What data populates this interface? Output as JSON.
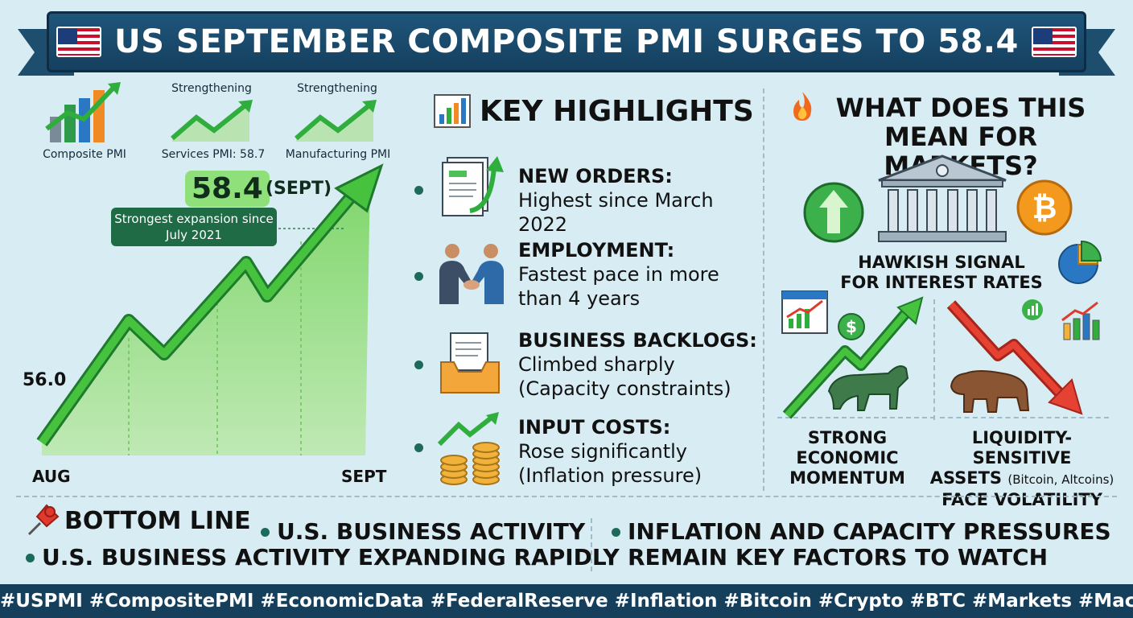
{
  "header": {
    "title": "US SEPTEMBER COMPOSITE PMI SURGES TO 58.4"
  },
  "left_panel": {
    "icons": [
      {
        "label": "Composite PMI",
        "icon": "bar-growth-icon"
      },
      {
        "caption": "Strengthening",
        "label": "Services PMI: 58.7",
        "icon": "trend-up-icon"
      },
      {
        "caption": "Strengthening",
        "label": "Manufacturing PMI",
        "icon": "trend-up-icon"
      }
    ],
    "value_label": "58.4",
    "value_period": "(SEPT)",
    "callout": "Strongest expansion since July 2021",
    "start_label": "56.0",
    "x_start": "AUG",
    "x_end": "SEPT"
  },
  "chart_data": {
    "type": "line",
    "x": [
      "AUG",
      "SEPT"
    ],
    "series": [
      {
        "values": [
          56.0,
          58.4
        ]
      }
    ]
  },
  "highlights": {
    "title": "KEY HIGHLIGHTS",
    "items": [
      {
        "heading": "NEW ORDERS:",
        "body": "Highest since March 2022",
        "icon": "document-growth-icon"
      },
      {
        "heading": "EMPLOYMENT:",
        "body": "Fastest pace in more than 4 years",
        "icon": "handshake-icon"
      },
      {
        "heading": "BUSINESS BACKLOGS:",
        "body": "Climbed sharply (Capacity constraints)",
        "icon": "inbox-tray-icon"
      },
      {
        "heading": "INPUT COSTS:",
        "body": "Rose significantly (Inflation pressure)",
        "icon": "coins-icon"
      }
    ]
  },
  "markets": {
    "title": "WHAT DOES THIS MEAN FOR MARKETS?",
    "hawkish": "HAWKISH SIGNAL FOR INTEREST RATES",
    "bull_label": "STRONG ECONOMIC MOMENTUM",
    "bear_label_1": "LIQUIDITY-SENSITIVE",
    "bear_label_2": "ASSETS",
    "bear_label_small": "(Bitcoin, Altcoins)",
    "bear_label_3": "FACE VOLATILITY",
    "bitcoin_symbol": "₿",
    "dollar_symbol": "$"
  },
  "bottom_line": {
    "title": "BOTTOM LINE",
    "line_a": "U.S. BUSINESS ACTIVITY",
    "line_b": "U.S. BUSINESS ACTIVITY EXPANDING RAPIDLY",
    "line_c1": "INFLATION AND CAPACITY PRESSURES",
    "line_c2": "REMAIN KEY FACTORS TO WATCH"
  },
  "footer": {
    "hashtags": "#USPMI #CompositePMI #EconomicData #FederalReserve #Inflation #Bitcoin #Crypto #BTC #Markets #Macro"
  },
  "colors": {
    "navy": "#163f5c",
    "green": "#3cb04a",
    "red": "#e03a2e",
    "bg": "#d8ecf3"
  }
}
